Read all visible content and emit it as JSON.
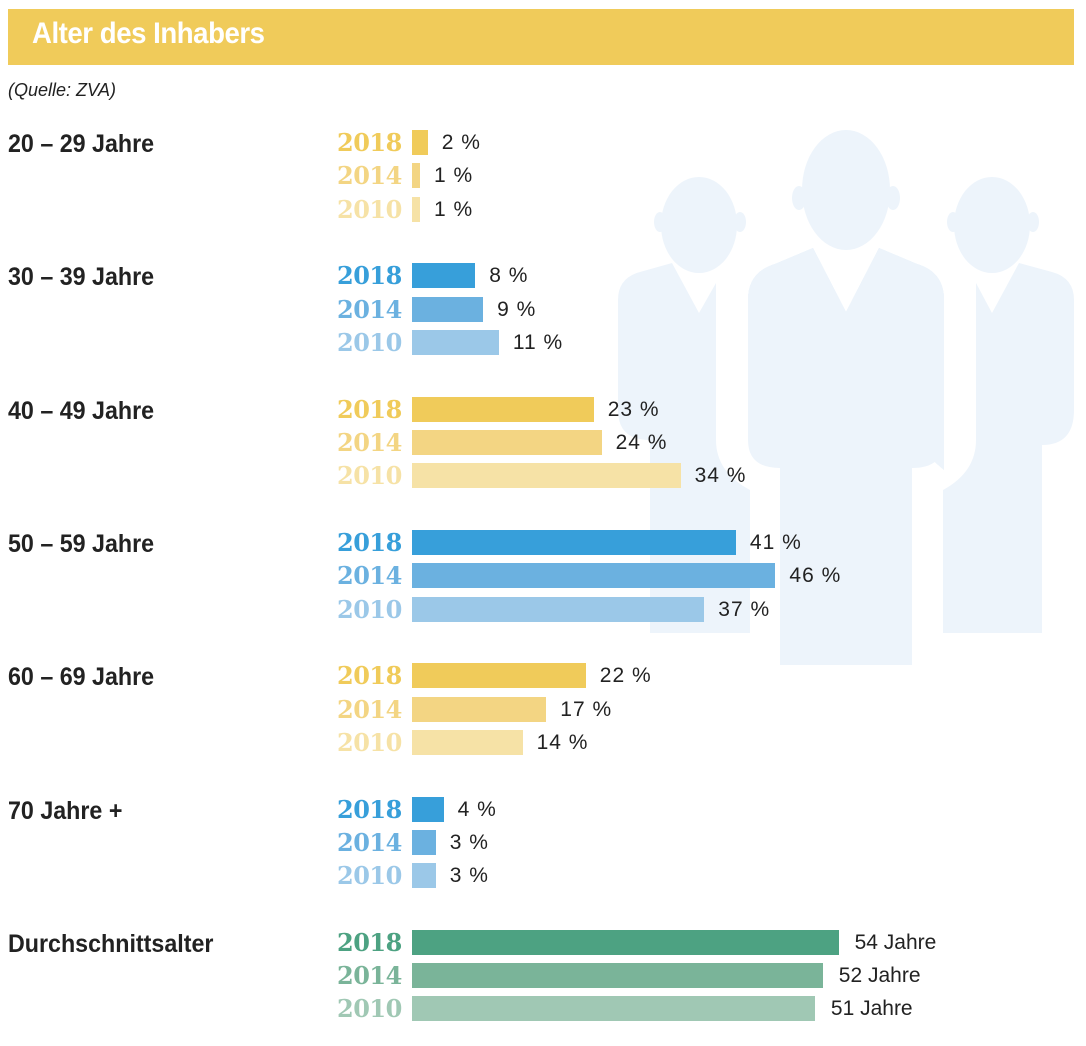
{
  "header": {
    "title": "Alter des Inhabers",
    "source": "(Quelle: ZVA)"
  },
  "background_icon": "people-group-silhouette-icon",
  "colors": {
    "header_bg": "#f0cb5a",
    "yellow": [
      "#f0cb5a",
      "#f3d583",
      "#f6e2a6"
    ],
    "blue": [
      "#379fda",
      "#6bb1e0",
      "#9bc8e8"
    ],
    "green": [
      "#4da282",
      "#7ab499",
      "#a0c8b4"
    ],
    "silhouette": "#edf4fb",
    "text": "#222222"
  },
  "chart_data": {
    "type": "bar",
    "orientation": "horizontal",
    "title": "Alter des Inhabers",
    "subtitle": "(Quelle: ZVA)",
    "unit": "%",
    "series_names": [
      "2018",
      "2014",
      "2010"
    ],
    "groups": [
      {
        "label": "20 – 29 Jahre",
        "palette": "yellow",
        "years": [
          "2018",
          "2014",
          "2010"
        ],
        "values": [
          2,
          1,
          1
        ],
        "labels": [
          "2 %",
          "1 %",
          "1 %"
        ]
      },
      {
        "label": "30 – 39 Jahre",
        "palette": "blue",
        "years": [
          "2018",
          "2014",
          "2010"
        ],
        "values": [
          8,
          9,
          11
        ],
        "labels": [
          "8 %",
          "9 %",
          "11 %"
        ]
      },
      {
        "label": "40 – 49 Jahre",
        "palette": "yellow",
        "years": [
          "2018",
          "2014",
          "2010"
        ],
        "values": [
          23,
          24,
          34
        ],
        "labels": [
          "23 %",
          "24 %",
          "34 %"
        ]
      },
      {
        "label": "50 – 59 Jahre",
        "palette": "blue",
        "years": [
          "2018",
          "2014",
          "2010"
        ],
        "values": [
          41,
          46,
          37
        ],
        "labels": [
          "41 %",
          "46 %",
          "37 %"
        ]
      },
      {
        "label": "60 – 69 Jahre",
        "palette": "yellow",
        "years": [
          "2018",
          "2014",
          "2010"
        ],
        "values": [
          22,
          17,
          14
        ],
        "labels": [
          "22 %",
          "17 %",
          "14 %"
        ]
      },
      {
        "label": "70 Jahre +",
        "palette": "blue",
        "years": [
          "2018",
          "2014",
          "2010"
        ],
        "values": [
          4,
          3,
          3
        ],
        "labels": [
          "4 %",
          "3 %",
          "3 %"
        ]
      },
      {
        "label": "Durchschnittsalter",
        "palette": "green",
        "unit": "Jahre",
        "years": [
          "2018",
          "2014",
          "2010"
        ],
        "values": [
          54,
          52,
          51
        ],
        "labels": [
          "54 Jahre",
          "52 Jahre",
          "51 Jahre"
        ]
      }
    ],
    "xlabel": "",
    "ylabel": "",
    "grid": false,
    "legend": "none"
  }
}
